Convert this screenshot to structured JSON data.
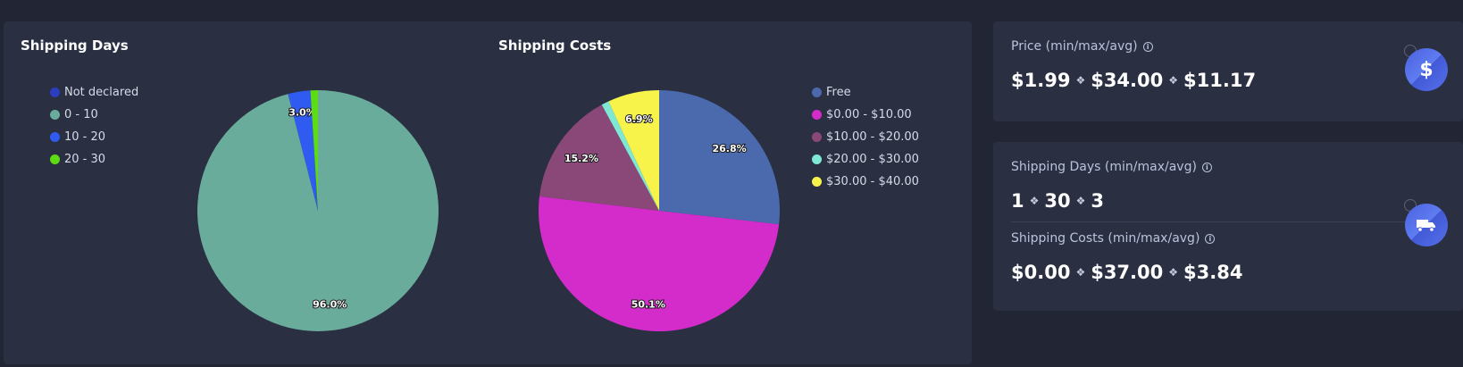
{
  "chart_data": [
    {
      "type": "pie",
      "title": "Shipping Days",
      "categories": [
        "Not declared",
        "0 - 10",
        "10 - 20",
        "20 - 30"
      ],
      "values": [
        0,
        96.0,
        3.0,
        1.0
      ],
      "labels": [
        "",
        "96.0%",
        "3.0%",
        ""
      ],
      "colors": [
        "#2a3fbf",
        "#6aac9c",
        "#2f5bf0",
        "#5ddc16"
      ],
      "legend_position": "left"
    },
    {
      "type": "pie",
      "title": "Shipping Costs",
      "categories": [
        "Free",
        "$0.00 - $10.00",
        "$10.00 - $20.00",
        "$20.00 - $30.00",
        "$30.00 - $40.00"
      ],
      "values": [
        26.8,
        50.1,
        15.2,
        1.0,
        6.9
      ],
      "labels": [
        "26.8%",
        "50.1%",
        "15.2%",
        "",
        "6.9%"
      ],
      "colors": [
        "#4a6aad",
        "#d42ccb",
        "#8a4878",
        "#7ee8d4",
        "#f7f34b"
      ],
      "legend_position": "right"
    }
  ],
  "stats": {
    "price": {
      "label": "Price (min/max/avg)",
      "min": "$1.99",
      "max": "$34.00",
      "avg": "$11.17",
      "icon": "dollar-icon"
    },
    "shipping_days": {
      "label": "Shipping Days (min/max/avg)",
      "min": "1",
      "max": "30",
      "avg": "3"
    },
    "shipping_costs": {
      "label": "Shipping Costs (min/max/avg)",
      "min": "$0.00",
      "max": "$37.00",
      "avg": "$3.84",
      "icon": "truck-icon"
    }
  },
  "glyphs": {
    "info": "i",
    "separator": "❖",
    "dollar": "$"
  }
}
